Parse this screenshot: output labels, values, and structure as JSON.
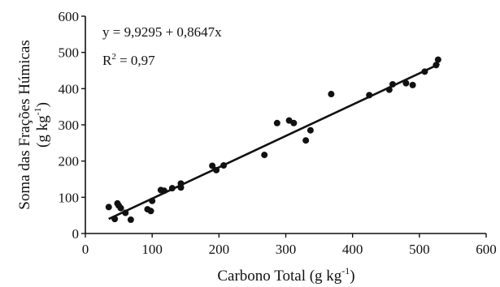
{
  "chart_data": {
    "type": "scatter",
    "xlabel": "Carbono Total (g kg",
    "xlabel_sup": "-1",
    "xlabel_close": ")",
    "ylabel_line1": "Soma das Frações Húmicas",
    "ylabel_line2": "(g kg",
    "ylabel_sup": "-1",
    "ylabel_close": ")",
    "xlim": [
      0,
      600
    ],
    "ylim": [
      0,
      600
    ],
    "xticks": [
      0,
      100,
      200,
      300,
      400,
      500,
      600
    ],
    "yticks": [
      0,
      100,
      200,
      300,
      400,
      500,
      600
    ],
    "grid": false,
    "regression": {
      "intercept": 9.9295,
      "slope": 0.8647,
      "x_range": [
        35,
        530
      ],
      "equation": "y = 9,9295 + 0,8647x",
      "r2_prefix": "R",
      "r2_sup": "2",
      "r2_suffix": " = 0,97"
    },
    "points": [
      {
        "x": 35,
        "y": 73
      },
      {
        "x": 44,
        "y": 40
      },
      {
        "x": 48,
        "y": 83
      },
      {
        "x": 50,
        "y": 77
      },
      {
        "x": 53,
        "y": 70
      },
      {
        "x": 60,
        "y": 57
      },
      {
        "x": 68,
        "y": 38
      },
      {
        "x": 93,
        "y": 67
      },
      {
        "x": 98,
        "y": 62
      },
      {
        "x": 100,
        "y": 90
      },
      {
        "x": 113,
        "y": 120
      },
      {
        "x": 118,
        "y": 118
      },
      {
        "x": 130,
        "y": 125
      },
      {
        "x": 143,
        "y": 127
      },
      {
        "x": 143,
        "y": 138
      },
      {
        "x": 190,
        "y": 187
      },
      {
        "x": 196,
        "y": 175
      },
      {
        "x": 207,
        "y": 188
      },
      {
        "x": 268,
        "y": 217
      },
      {
        "x": 287,
        "y": 305
      },
      {
        "x": 305,
        "y": 312
      },
      {
        "x": 312,
        "y": 305
      },
      {
        "x": 330,
        "y": 257
      },
      {
        "x": 337,
        "y": 285
      },
      {
        "x": 368,
        "y": 385
      },
      {
        "x": 425,
        "y": 382
      },
      {
        "x": 455,
        "y": 397
      },
      {
        "x": 460,
        "y": 412
      },
      {
        "x": 480,
        "y": 415
      },
      {
        "x": 490,
        "y": 410
      },
      {
        "x": 508,
        "y": 447
      },
      {
        "x": 525,
        "y": 465
      },
      {
        "x": 528,
        "y": 480
      }
    ]
  }
}
